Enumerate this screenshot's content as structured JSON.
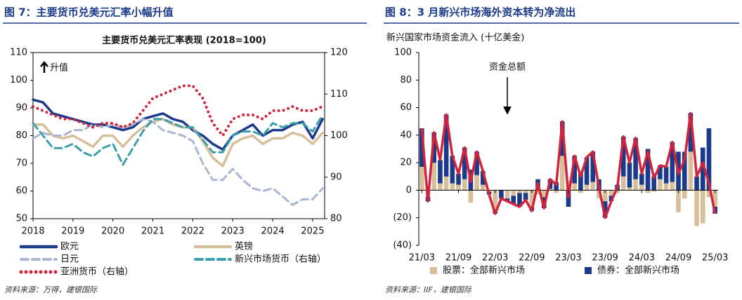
{
  "chart_data": [
    {
      "type": "line",
      "figure_title": "图 7：主要货币兑美元汇率小幅升值",
      "title": "主要货币兑美元汇率表现 (2018=100)",
      "annotation": "升值",
      "source": "资料来源：万得，建银国际",
      "x": [
        2018,
        2018.25,
        2018.5,
        2018.75,
        2019,
        2019.25,
        2019.5,
        2019.75,
        2020,
        2020.25,
        2020.5,
        2020.75,
        2021,
        2021.25,
        2021.5,
        2021.75,
        2022,
        2022.25,
        2022.5,
        2022.75,
        2023,
        2023.25,
        2023.5,
        2023.75,
        2024,
        2024.25,
        2024.5,
        2024.75,
        2025,
        2025.25
      ],
      "xlim": [
        2018,
        2025.3
      ],
      "xticks": [
        2018,
        2019,
        2020,
        2021,
        2022,
        2023,
        2024,
        2025
      ],
      "ylim": [
        50,
        110
      ],
      "yticks": [
        50,
        60,
        70,
        80,
        90,
        100,
        110
      ],
      "y2lim": [
        80,
        120
      ],
      "y2ticks": [
        80,
        90,
        100,
        110,
        120
      ],
      "series": [
        {
          "name": "欧元",
          "color": "#1b3a8c",
          "style": "solid",
          "values": [
            93,
            92,
            88,
            87,
            86,
            85,
            84,
            84,
            83,
            82,
            83,
            86,
            87,
            88,
            86,
            85,
            82,
            80,
            77,
            75,
            80,
            82,
            84,
            80,
            82,
            82,
            84,
            85,
            79,
            86
          ]
        },
        {
          "name": "英镑",
          "color": "#d8bf9c",
          "style": "solid",
          "values": [
            84,
            84,
            80,
            79,
            80,
            78,
            76,
            80,
            80,
            76,
            80,
            83,
            85,
            86,
            84,
            83,
            83,
            78,
            72,
            69,
            77,
            79,
            80,
            77,
            79,
            79,
            81,
            80,
            77,
            81
          ]
        },
        {
          "name": "日元",
          "color": "#a9b5d2",
          "style": "dashed",
          "values": [
            79,
            81,
            80,
            80,
            82,
            82,
            84,
            83,
            84,
            83,
            84,
            86,
            85,
            82,
            81,
            80,
            78,
            70,
            64,
            64,
            68,
            64,
            61,
            60,
            61,
            58,
            55,
            57,
            57,
            61
          ]
        },
        {
          "name": "新兴市场货币（右轴）",
          "color": "#3a9fa8",
          "style": "dashed",
          "axis": "y2",
          "values": [
            103,
            100,
            97,
            97,
            98,
            96,
            95,
            97,
            98,
            93,
            97,
            101,
            104,
            104,
            103,
            102,
            102,
            99,
            96,
            96,
            100,
            101,
            101,
            100,
            103,
            102,
            103,
            103,
            101,
            105
          ]
        },
        {
          "name": "亚洲货币（右轴）",
          "color": "#d0243c",
          "style": "dotted",
          "axis": "y2",
          "values": [
            107,
            106,
            105,
            104,
            104,
            103,
            102,
            103,
            103,
            102,
            103,
            106,
            109,
            110,
            111,
            112,
            112,
            109,
            103,
            100,
            104,
            105,
            105,
            104,
            106,
            106,
            107,
            106,
            106,
            107
          ]
        }
      ]
    },
    {
      "type": "bar",
      "figure_title": "图 8：3 月新兴市场海外资本转为净流出",
      "y_label": "新兴国家市场资金流入 (十亿美金)",
      "source": "资料来源：IIF，建银国际",
      "negative_tick_color": "#c00000",
      "categories": [
        "21/03",
        null,
        null,
        null,
        null,
        null,
        "21/09",
        null,
        null,
        null,
        null,
        null,
        "22/03",
        null,
        null,
        null,
        null,
        null,
        "22/09",
        null,
        null,
        null,
        null,
        null,
        "23/03",
        null,
        null,
        null,
        null,
        null,
        "23/09",
        null,
        null,
        null,
        null,
        null,
        "24/03",
        null,
        null,
        null,
        null,
        null,
        "24/09",
        null,
        null,
        null,
        null,
        null,
        "25/03"
      ],
      "ylim": [
        -40,
        100
      ],
      "yticks": [
        {
          "value": -40,
          "label": "(40)"
        },
        {
          "value": -20,
          "label": "(20)"
        },
        0,
        20,
        40,
        60,
        80,
        100
      ],
      "series": [
        {
          "name": "股票：全部新兴市场",
          "color": "#d8bf9c",
          "type": "bar",
          "values": [
            17,
            -5,
            20,
            5,
            10,
            5,
            4,
            8,
            -9,
            11,
            4,
            -1,
            -14,
            0,
            -6,
            -4,
            -2,
            -2,
            -12,
            -3,
            -5,
            1,
            -2,
            25,
            7,
            5,
            -2,
            4,
            6,
            -6,
            -8,
            -4,
            -2,
            10,
            2,
            8,
            4,
            -2,
            -1,
            8,
            5,
            6,
            -16,
            -6,
            28,
            -26,
            -24,
            -5,
            -12
          ]
        },
        {
          "name": "债券：全部新兴市场",
          "color": "#1b3a8c",
          "type": "bar",
          "values": [
            28,
            -3,
            22,
            17,
            45,
            20,
            8,
            23,
            15,
            17,
            10,
            -2,
            -3,
            -6,
            -2,
            -6,
            -10,
            -5,
            -3,
            8,
            -8,
            7,
            6,
            25,
            -12,
            20,
            12,
            20,
            22,
            8,
            -12,
            -4,
            4,
            29,
            18,
            30,
            8,
            30,
            10,
            10,
            12,
            29,
            28,
            28,
            28,
            10,
            31,
            45,
            -5
          ]
        },
        {
          "name": "资金总额",
          "color": "#d0243c",
          "type": "line",
          "values": [
            45,
            -8,
            42,
            22,
            55,
            25,
            12,
            31,
            6,
            28,
            14,
            -3,
            -17,
            -6,
            -8,
            -10,
            -12,
            -7,
            -15,
            5,
            -13,
            8,
            4,
            50,
            -5,
            25,
            10,
            24,
            28,
            2,
            -20,
            -8,
            2,
            39,
            20,
            38,
            12,
            28,
            9,
            18,
            17,
            35,
            12,
            22,
            56,
            10,
            20,
            5,
            -17
          ]
        }
      ]
    }
  ]
}
